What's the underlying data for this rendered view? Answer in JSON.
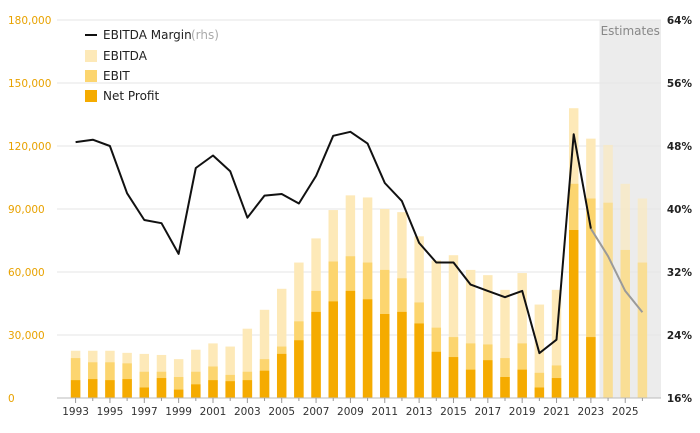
{
  "chart_data": {
    "type": "bar",
    "x": [
      1993,
      1994,
      1995,
      1996,
      1997,
      1998,
      1999,
      2000,
      2001,
      2002,
      2003,
      2004,
      2005,
      2006,
      2007,
      2008,
      2009,
      2010,
      2011,
      2012,
      2013,
      2014,
      2015,
      2016,
      2017,
      2018,
      2019,
      2020,
      2021,
      2022,
      2023,
      2024,
      2025,
      2026
    ],
    "x_tick_labels": [
      "1993",
      "1995",
      "1997",
      "1999",
      "2001",
      "2003",
      "2005",
      "2007",
      "2009",
      "2011",
      "2013",
      "2015",
      "2017",
      "2019",
      "2021",
      "2023",
      "2025"
    ],
    "series": [
      {
        "name": "EBITDA",
        "kind": "bar",
        "color": "#fde9b8",
        "values": [
          22500,
          22500,
          22500,
          21500,
          21000,
          20500,
          18500,
          23000,
          26000,
          24500,
          33000,
          42000,
          52000,
          64500,
          76000,
          89500,
          96500,
          95500,
          90000,
          88500,
          77000,
          65500,
          68000,
          61000,
          58500,
          51500,
          59500,
          44500,
          51500,
          138000,
          123500,
          120500,
          102000,
          95000
        ]
      },
      {
        "name": "EBIT",
        "kind": "bar",
        "color": "#fcd56f",
        "values": [
          19000,
          17000,
          17000,
          16500,
          12500,
          12500,
          10000,
          12500,
          15000,
          11000,
          12500,
          18500,
          24500,
          36500,
          51000,
          65000,
          67500,
          64500,
          61000,
          57000,
          45500,
          33500,
          29000,
          26000,
          25500,
          19000,
          26000,
          12000,
          15500,
          102000,
          95000,
          93000,
          70500,
          64500
        ]
      },
      {
        "name": "Net Profit",
        "kind": "bar",
        "color": "#f5ab00",
        "values": [
          8500,
          9000,
          8500,
          9000,
          5000,
          9500,
          4000,
          6500,
          8500,
          8000,
          8500,
          13000,
          21000,
          27500,
          41000,
          46000,
          51000,
          47000,
          40000,
          41000,
          35500,
          22000,
          19500,
          13500,
          18000,
          10000,
          13500,
          5000,
          9500,
          80000,
          29000,
          null,
          null,
          null
        ]
      },
      {
        "name": "EBITDA Margin",
        "name_note": "(rhs)",
        "kind": "line",
        "color": "#111111",
        "axis": "right",
        "values": [
          48.5,
          48.8,
          48.0,
          42.0,
          38.6,
          38.2,
          34.3,
          45.2,
          46.8,
          44.8,
          38.9,
          41.7,
          41.9,
          40.7,
          44.2,
          49.3,
          49.8,
          48.3,
          43.3,
          41.0,
          35.7,
          33.2,
          33.2,
          30.4,
          29.6,
          28.8,
          29.6,
          21.7,
          23.4,
          49.5,
          37.5,
          34.0,
          29.6,
          26.9
        ]
      }
    ],
    "estimates_label": "Estimates",
    "estimates_start": 2024,
    "ylim_left": [
      0,
      180000
    ],
    "ylim_right": [
      16,
      64
    ],
    "y_left_ticks": [
      "0",
      "30,000",
      "60,000",
      "90,000",
      "120,000",
      "150,000",
      "180,000"
    ],
    "y_right_ticks": [
      "16%",
      "24%",
      "32%",
      "40%",
      "48%",
      "56%",
      "64%"
    ],
    "legend": [
      "EBITDA Margin",
      "EBITDA",
      "EBIT",
      "Net Profit"
    ],
    "legend_position": "top-left",
    "grid": true
  }
}
